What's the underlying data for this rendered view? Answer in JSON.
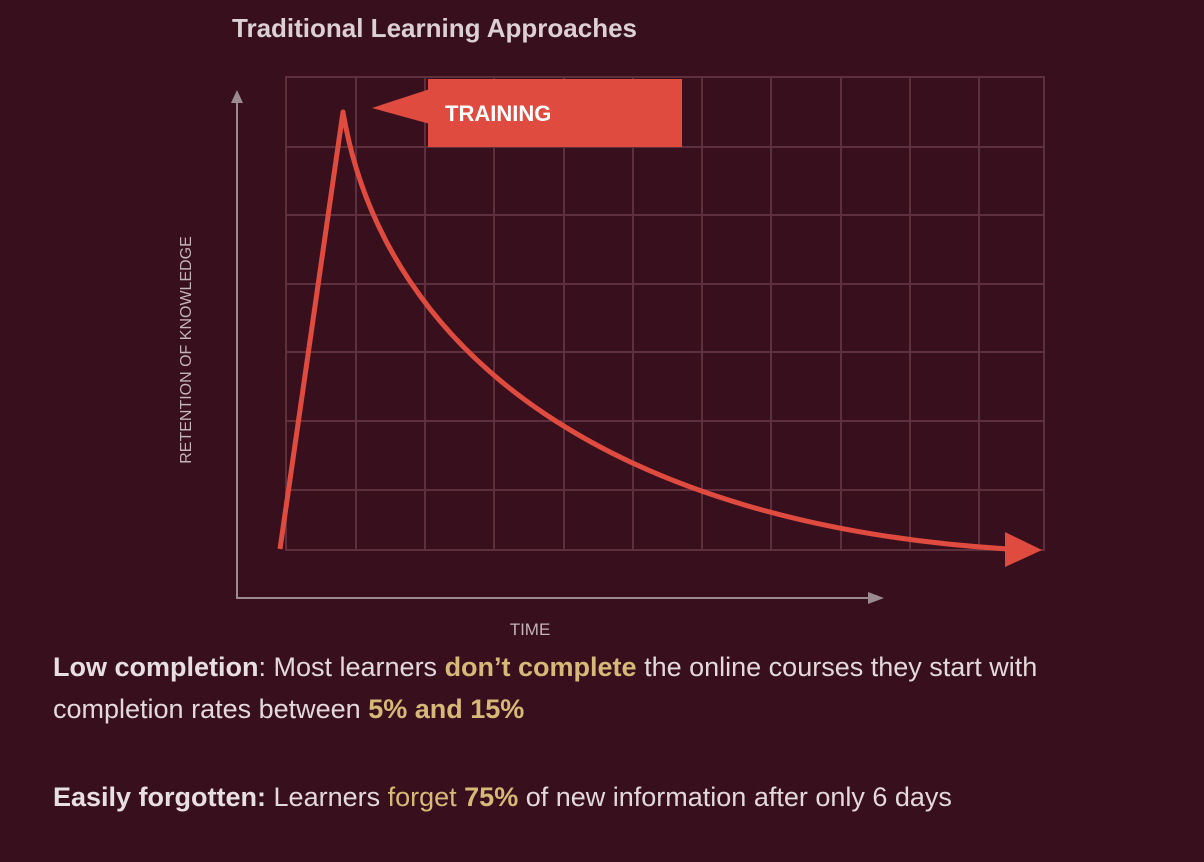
{
  "title": "Traditional Learning Approaches",
  "diagram": {
    "callout": "TRAINING",
    "y_axis_label": "RETENTION OF KNOWLEDGE",
    "x_axis_label": "TIME"
  },
  "paragraphs": [
    [
      "Low completion",
      ": Most learners ",
      "don’t complete",
      " the online courses they start with completion rates between ",
      "5% and 15%"
    ],
    [
      "Easily forgotten:",
      " Learners ",
      "forget ",
      "75%",
      " of new information after only 6 days"
    ]
  ]
}
